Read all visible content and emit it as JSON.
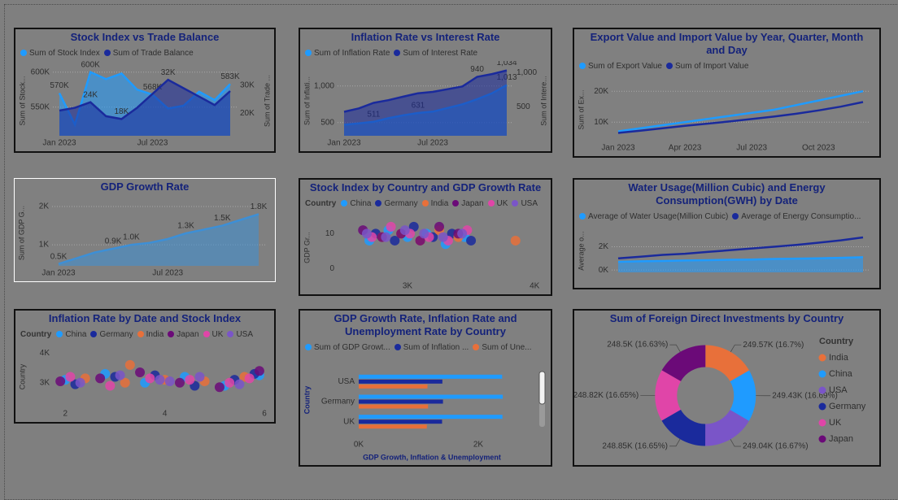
{
  "chart_data": [
    {
      "type": "line",
      "title": "Stock Index vs Trade Balance",
      "categories": [
        "Jan 2023",
        null,
        null,
        null,
        null,
        null,
        "Jul 2023",
        null,
        null,
        null,
        null,
        null
      ],
      "y_label": "Sum of Stock...",
      "y2_label": "Sum of Trade ...",
      "ylim": [
        509000,
        609000
      ],
      "yticks": [
        {
          "value": 550000,
          "label": "550K"
        },
        {
          "value": 600000,
          "label": "600K"
        }
      ],
      "y2lim": [
        12000,
        37000
      ],
      "y2ticks": [
        {
          "value": 20000,
          "label": "20K"
        },
        {
          "value": 30000,
          "label": "30K"
        }
      ],
      "series": [
        {
          "name": "Sum of Stock Index",
          "color": "#1f9bff",
          "area": true,
          "values": [
            570000,
            525000,
            600000,
            590000,
            598000,
            575000,
            568000,
            548000,
            552000,
            572000,
            560000,
            583000
          ],
          "value_labels": [
            "570K",
            null,
            "600K",
            null,
            null,
            null,
            "568K",
            null,
            null,
            null,
            null,
            "583K"
          ]
        },
        {
          "name": "Sum of Trade Balance",
          "color": "#1a2a9c",
          "area": true,
          "axis": "y2",
          "values": [
            21000,
            22000,
            24000,
            19000,
            18000,
            22000,
            27000,
            32000,
            29000,
            26000,
            23000,
            28000
          ],
          "value_labels": [
            null,
            null,
            "24K",
            null,
            "18K",
            null,
            null,
            "32K",
            null,
            null,
            null,
            null
          ]
        }
      ],
      "grid": true
    },
    {
      "type": "line",
      "title": "Inflation Rate vs Interest Rate",
      "categories": [
        "Jan 2023",
        null,
        null,
        null,
        null,
        null,
        "Jul 2023",
        null,
        null,
        null,
        null,
        null
      ],
      "y_label": "Sum of Inflati...",
      "y2_label": "Sum of Intere...",
      "ylim": [
        320,
        1275
      ],
      "yticks": [
        500,
        {
          "value": 1000,
          "label": "1,000"
        }
      ],
      "y2lim": [
        80,
        1100
      ],
      "y2ticks": [
        500,
        {
          "value": 1000,
          "label": "1,000"
        }
      ],
      "series": [
        {
          "name": "Sum of Inflation Rate",
          "color": "#1f9bff",
          "area": true,
          "values": [
            470,
            490,
            511,
            560,
            600,
            631,
            650,
            700,
            750,
            820,
            900,
            1013
          ],
          "value_labels": [
            null,
            null,
            "511",
            null,
            null,
            "631",
            null,
            null,
            null,
            null,
            null,
            "1,013"
          ]
        },
        {
          "name": "Sum of Interest Rate",
          "color": "#1a2a9c",
          "area": true,
          "axis": "y2",
          "values": [
            430,
            480,
            560,
            600,
            650,
            700,
            720,
            760,
            800,
            940,
            980,
            1034
          ],
          "value_labels": [
            null,
            null,
            null,
            null,
            null,
            null,
            null,
            null,
            null,
            "940",
            null,
            "1,034"
          ]
        }
      ],
      "grid": true
    },
    {
      "type": "line",
      "title": "Export Value and Import Value by Year, Quarter, Month and Day",
      "categories": [
        "Jan 2023",
        null,
        null,
        "Apr 2023",
        null,
        null,
        "Jul 2023",
        null,
        null,
        "Oct 2023",
        null,
        null
      ],
      "y_label": "Sum of Ex...",
      "ylim": [
        4000,
        24000
      ],
      "yticks": [
        {
          "value": 10000,
          "label": "10K"
        },
        {
          "value": 20000,
          "label": "20K"
        }
      ],
      "series": [
        {
          "name": "Sum of Export Value",
          "color": "#1f9bff",
          "values": [
            7000,
            8000,
            9000,
            10000,
            11000,
            12000,
            13000,
            14000,
            15500,
            17000,
            18500,
            20000
          ]
        },
        {
          "name": "Sum of Import Value",
          "color": "#1a2a9c",
          "values": [
            6500,
            7200,
            8000,
            8800,
            9500,
            10200,
            11000,
            11800,
            12700,
            13800,
            15000,
            16500
          ]
        }
      ],
      "grid": true
    },
    {
      "type": "line",
      "title": "GDP Growth Rate",
      "selected": true,
      "categories": [
        "Jan 2023",
        null,
        null,
        null,
        null,
        null,
        "Jul 2023",
        null,
        null,
        null,
        null,
        null
      ],
      "y_label": "Sum of GDP G...",
      "ylim": [
        450,
        2170
      ],
      "yticks": [
        {
          "value": 1000,
          "label": "1K"
        },
        {
          "value": 2000,
          "label": "2K"
        }
      ],
      "values": [
        500,
        650,
        800,
        900,
        1000,
        1050,
        1150,
        1300,
        1400,
        1500,
        1650,
        1800
      ],
      "value_labels": [
        "0.5K",
        null,
        null,
        "0.9K",
        "1.0K",
        null,
        null,
        "1.3K",
        null,
        "1.5K",
        null,
        "1.8K"
      ],
      "color": "#3d8fd6",
      "area": true,
      "grid": true
    },
    {
      "type": "scatter",
      "title": "Stock Index by Country and GDP Growth Rate",
      "legend_title": "Country",
      "y_label": "GDP Gr...",
      "xlim": [
        2450,
        4050
      ],
      "xticks": [
        {
          "value": 3000,
          "label": "3K"
        },
        {
          "value": 4000,
          "label": "4K"
        }
      ],
      "ylim": [
        -3,
        15
      ],
      "yticks": [
        0,
        10
      ],
      "series": [
        {
          "name": "China",
          "color": "#1f9bff",
          "x": [
            2700,
            2850,
            3000,
            3150,
            3300,
            3450
          ],
          "values": [
            8,
            11,
            9,
            10,
            7,
            9
          ]
        },
        {
          "name": "Germany",
          "color": "#1a2a9c",
          "x": [
            2750,
            2900,
            3050,
            3200,
            3350,
            3500
          ],
          "values": [
            10,
            8,
            12,
            9,
            10,
            8
          ]
        },
        {
          "name": "India",
          "color": "#e8703a",
          "x": [
            2800,
            2950,
            3100,
            3250,
            3400,
            3850
          ],
          "values": [
            9,
            10,
            8,
            11,
            9,
            8
          ]
        },
        {
          "name": "Japan",
          "color": "#6b0a78",
          "x": [
            2650,
            2800,
            2950,
            3100,
            3250,
            3400
          ],
          "values": [
            11,
            9,
            10,
            8,
            12,
            10
          ]
        },
        {
          "name": "UK",
          "color": "#e045a8",
          "x": [
            2720,
            2870,
            3020,
            3170,
            3320,
            3470
          ],
          "values": [
            9,
            12,
            10,
            9,
            8,
            11
          ]
        },
        {
          "name": "USA",
          "color": "#7a55c8",
          "x": [
            2680,
            2830,
            2980,
            3130,
            3280,
            3430
          ],
          "values": [
            10,
            9,
            11,
            10,
            9,
            10
          ]
        }
      ]
    },
    {
      "type": "line",
      "title": "Water Usage(Million Cubic) and Energy Consumption(GWH) by Date",
      "categories": [
        null,
        null,
        null,
        null,
        null,
        null,
        null,
        null,
        null,
        null,
        null,
        null
      ],
      "y_label": "Average o...",
      "ylim": [
        -200,
        3500
      ],
      "yticks": [
        {
          "value": 0,
          "label": "0K"
        },
        {
          "value": 2000,
          "label": "2K"
        }
      ],
      "series": [
        {
          "name": "Average of Water Usage(Million Cubic)",
          "color": "#1f9bff",
          "area": true,
          "values": [
            700,
            750,
            780,
            820,
            850,
            880,
            900,
            950,
            980,
            1000,
            1050,
            1100
          ]
        },
        {
          "name": "Average of Energy Consumptio...",
          "color": "#1a2a9c",
          "values": [
            1000,
            1150,
            1300,
            1400,
            1550,
            1700,
            1850,
            2000,
            2150,
            2350,
            2550,
            2800
          ]
        }
      ],
      "grid": true
    },
    {
      "type": "scatter",
      "title": "Inflation Rate by Date and Stock Index",
      "legend_title": "Country",
      "y_label": "Country",
      "xlim": [
        1.75,
        6
      ],
      "xticks": [
        2,
        4,
        6
      ],
      "ylim": [
        2200,
        4200
      ],
      "yticks": [
        {
          "value": 3000,
          "label": "3K"
        },
        {
          "value": 4000,
          "label": "4K"
        }
      ],
      "series": [
        {
          "name": "China",
          "color": "#1f9bff",
          "x": [
            2.0,
            2.8,
            3.6,
            4.4,
            5.2,
            5.9
          ],
          "values": [
            3100,
            3300,
            3000,
            3200,
            2900,
            3250
          ]
        },
        {
          "name": "Germany",
          "color": "#1a2a9c",
          "x": [
            2.2,
            3.0,
            3.8,
            4.6,
            5.4,
            5.8
          ],
          "values": [
            2950,
            3200,
            3250,
            2900,
            3100,
            3300
          ]
        },
        {
          "name": "India",
          "color": "#e8703a",
          "x": [
            2.4,
            3.2,
            4.0,
            4.8,
            5.6,
            3.3
          ],
          "values": [
            3150,
            3000,
            3100,
            3050,
            3200,
            3600
          ]
        },
        {
          "name": "Japan",
          "color": "#6b0a78",
          "x": [
            1.9,
            2.7,
            3.5,
            4.3,
            5.1,
            5.9
          ],
          "values": [
            3050,
            3150,
            3350,
            3000,
            2850,
            3400
          ]
        },
        {
          "name": "UK",
          "color": "#e045a8",
          "x": [
            2.1,
            2.9,
            3.7,
            4.5,
            5.3,
            5.7
          ],
          "values": [
            3200,
            2900,
            3150,
            3100,
            3000,
            3150
          ]
        },
        {
          "name": "USA",
          "color": "#7a55c8",
          "x": [
            2.3,
            3.1,
            3.9,
            4.7,
            5.5,
            4.1
          ],
          "values": [
            3000,
            3250,
            3100,
            3200,
            2950,
            3050
          ]
        }
      ]
    },
    {
      "type": "bar",
      "title": "GDP Growth Rate, Inflation Rate and Unemployment Rate by Country",
      "categories": [
        "USA",
        "Germany",
        "UK"
      ],
      "x_label": "GDP Growth, Inflation & Unemployment",
      "y_label": "Country",
      "xlim": [
        0,
        2450
      ],
      "xticks": [
        {
          "value": 0,
          "label": "0K"
        },
        {
          "value": 2000,
          "label": "2K"
        }
      ],
      "series": [
        {
          "name": "Sum of GDP Growt...",
          "color": "#1f9bff",
          "values": [
            2400,
            2410,
            2405
          ]
        },
        {
          "name": "Sum of Inflation ...",
          "color": "#1a2a9c",
          "values": [
            1400,
            1410,
            1395
          ]
        },
        {
          "name": "Sum of Une...",
          "color": "#e8703a",
          "values": [
            1150,
            1160,
            1140
          ]
        }
      ]
    },
    {
      "type": "pie",
      "title": "Sum of Foreign Direct Investments by Country",
      "legend_title": "Country",
      "categories": [
        "India",
        "China",
        "USA",
        "Germany",
        "UK",
        "Japan"
      ],
      "values": [
        249570,
        249430,
        249040,
        248850,
        248820,
        248500
      ],
      "value_labels": [
        "249.57K (16.7%)",
        "249.43K (16.69%)",
        "249.04K (16.67%)",
        "248.85K (16.65%)",
        "248.82K (16.65%)",
        "248.5K (16.63%)"
      ],
      "colors": [
        "#e8703a",
        "#1f9bff",
        "#7a55c8",
        "#1a2a9c",
        "#e045a8",
        "#6b0a78"
      ]
    }
  ]
}
